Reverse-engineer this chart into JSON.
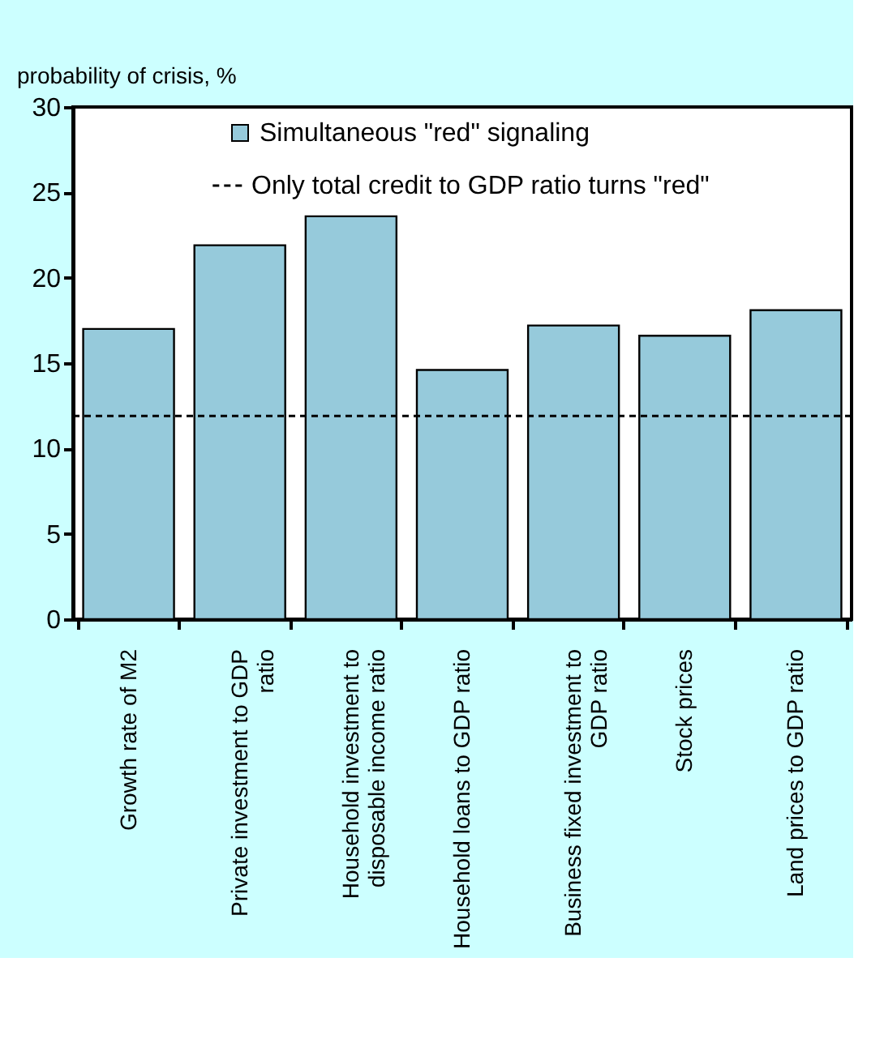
{
  "chart_data": {
    "type": "bar",
    "ylabel": "probability of crisis, %",
    "categories": [
      "Growth rate of M2",
      "Private investment to GDP ratio",
      "Household investment to disposable income ratio",
      "Household loans to GDP ratio",
      "Business fixed investment to GDP ratio",
      "Stock prices",
      "Land prices to GDP ratio"
    ],
    "series": [
      {
        "name": "Simultaneous \"red\" signaling",
        "color": "#96cadb",
        "values": [
          17.0,
          21.9,
          23.6,
          14.6,
          17.2,
          16.6,
          18.1
        ]
      }
    ],
    "ylim": [
      0,
      30
    ],
    "yticks": [
      0,
      5,
      10,
      15,
      20,
      25,
      30
    ],
    "ref_lines": [
      {
        "axis": "y",
        "value": 11.9,
        "label": "Only total credit to GDP ratio turns \"red\"",
        "color": "#000000",
        "line_style": "dashed"
      }
    ],
    "grid": false,
    "legend": "top right"
  }
}
